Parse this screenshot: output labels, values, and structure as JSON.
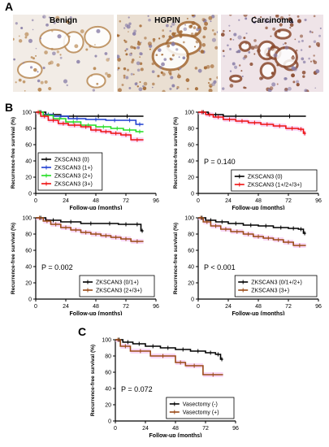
{
  "panels": {
    "A": "A",
    "B": "B",
    "C": "C"
  },
  "micrographs": [
    {
      "title": "Benign",
      "background": "#f2ece6",
      "stain": "#b98a55"
    },
    {
      "title": "HGPIN",
      "background": "#eadfd2",
      "stain": "#a46a35"
    },
    {
      "title": "Carcinoma",
      "background": "#efe4e8",
      "stain": "#8a4a2e"
    }
  ],
  "colors": {
    "black": "#000000",
    "blue": "#1f3fd1",
    "green": "#22dd22",
    "red": "#ee1111",
    "brown": "#9a4a16",
    "band": "#f4b8f0"
  },
  "chart_data": [
    {
      "type": "line",
      "step": true,
      "ylabel": "Recurrence-free survival (%)",
      "xlabel": "Follow-up (months)",
      "xlim": [
        0,
        96
      ],
      "ylim": [
        0,
        100
      ],
      "xticks": [
        "0",
        "24",
        "48",
        "72",
        "96"
      ],
      "yticks": [
        "0",
        "20",
        "40",
        "60",
        "80",
        "100"
      ],
      "pvalue": "",
      "legend_position": "center-left",
      "series": [
        {
          "name": "ZKSCAN3 (0)",
          "color": "black",
          "x": [
            0,
            8,
            20,
            40,
            60,
            86
          ],
          "y": [
            100,
            97,
            95,
            95,
            95,
            95
          ]
        },
        {
          "name": "ZKSCAN3 (1+)",
          "color": "blue",
          "x": [
            0,
            6,
            14,
            26,
            40,
            56,
            70,
            80,
            86
          ],
          "y": [
            100,
            97,
            95,
            92,
            91,
            90,
            90,
            85,
            85
          ]
        },
        {
          "name": "ZKSCAN3 (2+)",
          "color": "green",
          "x": [
            0,
            6,
            14,
            24,
            36,
            48,
            60,
            70,
            80,
            86
          ],
          "y": [
            100,
            96,
            92,
            88,
            84,
            82,
            80,
            78,
            76,
            76
          ]
        },
        {
          "name": "ZKSCAN3 (3+)",
          "color": "red",
          "x": [
            0,
            4,
            10,
            18,
            26,
            36,
            44,
            52,
            60,
            68,
            76,
            86
          ],
          "y": [
            100,
            95,
            90,
            86,
            84,
            82,
            78,
            76,
            74,
            72,
            66,
            66
          ]
        }
      ]
    },
    {
      "type": "line",
      "step": true,
      "ylabel": "Recurrence-free survival (%)",
      "xlabel": "Follow-up (months)",
      "xlim": [
        0,
        96
      ],
      "ylim": [
        0,
        100
      ],
      "xticks": [
        "0",
        "24",
        "48",
        "72",
        "96"
      ],
      "yticks": [
        "0",
        "20",
        "40",
        "60",
        "80",
        "100"
      ],
      "pvalue": "P = 0.140",
      "legend_position": "bottom-right",
      "series": [
        {
          "name": "ZKSCAN3 (0)",
          "color": "black",
          "x": [
            0,
            8,
            20,
            40,
            60,
            86
          ],
          "y": [
            100,
            97,
            95,
            95,
            95,
            95
          ]
        },
        {
          "name": "ZKSCAN3 (1+/2+/3+)",
          "color": "red",
          "x": [
            0,
            6,
            12,
            20,
            30,
            40,
            50,
            60,
            70,
            80,
            84,
            86
          ],
          "y": [
            100,
            97,
            94,
            91,
            89,
            87,
            85,
            83,
            80,
            79,
            74,
            74
          ]
        }
      ]
    },
    {
      "type": "line",
      "step": true,
      "ylabel": "Recurrence-free survival (%)",
      "xlabel": "Follow-up (months)",
      "xlim": [
        0,
        96
      ],
      "ylim": [
        0,
        100
      ],
      "xticks": [
        "0",
        "24",
        "48",
        "72",
        "96"
      ],
      "yticks": [
        "0",
        "20",
        "40",
        "60",
        "80",
        "100"
      ],
      "pvalue": "P = 0.002",
      "legend_position": "bottom-right",
      "series": [
        {
          "name": "ZKSCAN3 (0/1+)",
          "color": "black",
          "x": [
            0,
            8,
            20,
            36,
            52,
            66,
            78,
            84,
            86
          ],
          "y": [
            100,
            97,
            95,
            93,
            93,
            92,
            92,
            84,
            84
          ]
        },
        {
          "name": "ZKSCAN3 (2+/3+)",
          "color": "brown",
          "x": [
            0,
            6,
            12,
            20,
            28,
            36,
            44,
            52,
            60,
            68,
            76,
            86
          ],
          "y": [
            100,
            96,
            92,
            88,
            85,
            82,
            80,
            78,
            76,
            74,
            71,
            71
          ]
        }
      ]
    },
    {
      "type": "line",
      "step": true,
      "ylabel": "Recurrence-free survival (%)",
      "xlabel": "Follow-up (months)",
      "xlim": [
        0,
        96
      ],
      "ylim": [
        0,
        100
      ],
      "xticks": [
        "0",
        "24",
        "48",
        "72",
        "96"
      ],
      "yticks": [
        "0",
        "20",
        "40",
        "60",
        "80",
        "100"
      ],
      "pvalue": "P < 0.001",
      "legend_position": "bottom-right",
      "series": [
        {
          "name": "ZKSCAN3 (0/1+/2+)",
          "color": "black",
          "x": [
            0,
            6,
            14,
            24,
            36,
            48,
            60,
            72,
            80,
            84,
            86
          ],
          "y": [
            100,
            97,
            95,
            93,
            91,
            90,
            88,
            87,
            86,
            81,
            81
          ]
        },
        {
          "name": "ZKSCAN3 (3+)",
          "color": "brown",
          "x": [
            0,
            4,
            10,
            18,
            26,
            36,
            44,
            52,
            60,
            68,
            76,
            86
          ],
          "y": [
            100,
            95,
            90,
            86,
            83,
            80,
            77,
            75,
            73,
            70,
            66,
            66
          ]
        }
      ]
    },
    {
      "type": "line",
      "step": true,
      "ylabel": "Recurrence-free survival (%)",
      "xlabel": "Follow-up (months)",
      "xlim": [
        0,
        96
      ],
      "ylim": [
        0,
        100
      ],
      "xticks": [
        "0",
        "24",
        "48",
        "72",
        "96"
      ],
      "yticks": [
        "0",
        "20",
        "40",
        "60",
        "80",
        "100"
      ],
      "pvalue": "P = 0.072",
      "legend_position": "bottom-right",
      "series": [
        {
          "name": "Vasectomy (-)",
          "color": "black",
          "x": [
            0,
            6,
            14,
            24,
            36,
            48,
            60,
            72,
            80,
            84,
            86
          ],
          "y": [
            100,
            97,
            95,
            92,
            90,
            88,
            86,
            84,
            82,
            76,
            76
          ]
        },
        {
          "name": "Vasectomy (+)",
          "color": "brown",
          "x": [
            0,
            4,
            12,
            28,
            48,
            56,
            70,
            86
          ],
          "y": [
            100,
            92,
            86,
            80,
            72,
            68,
            57,
            57
          ]
        }
      ]
    }
  ]
}
